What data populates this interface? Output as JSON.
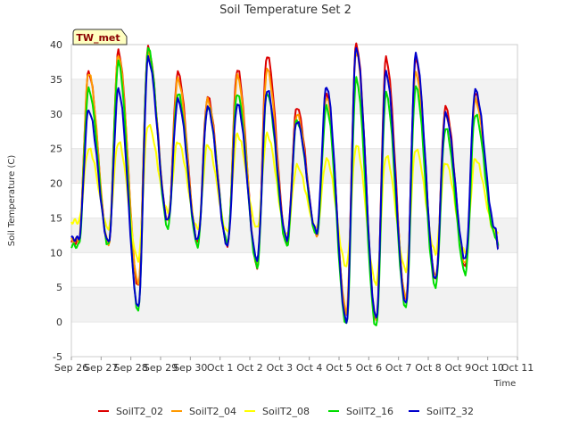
{
  "chart_data": {
    "type": "line",
    "title": "Soil Temperature Set 2",
    "xlabel": "Time",
    "ylabel": "Soil Temperature (C)",
    "ylim": [
      -5,
      40
    ],
    "yticks": [
      -5,
      0,
      5,
      10,
      15,
      20,
      25,
      30,
      35,
      40
    ],
    "xticks": [
      "Sep 26",
      "Sep 27",
      "Sep 28",
      "Sep 29",
      "Sep 30",
      "Oct 1",
      "Oct 2",
      "Oct 3",
      "Oct 4",
      "Oct 5",
      "Oct 6",
      "Oct 7",
      "Oct 8",
      "Oct 9",
      "Oct 10",
      "Oct 11"
    ],
    "xlim": [
      "Sep 26",
      "Oct 11"
    ],
    "grid": "horizontal bands",
    "legend_position": "bottom",
    "annotation": "TW_met",
    "series": [
      {
        "name": "SoilT2_02",
        "color": "#dd0000",
        "peaks": [
          36,
          39,
          39.5,
          36,
          32.5,
          36.5,
          38.5,
          31,
          33,
          40,
          38,
          38,
          31,
          33
        ],
        "troughs": [
          11.5,
          11,
          5,
          14.5,
          11.5,
          11,
          8,
          11.5,
          12.5,
          1,
          0,
          3,
          6,
          8,
          13
        ],
        "end_value": 11
      },
      {
        "name": "SoilT2_04",
        "color": "#ff9900",
        "peaks": [
          36,
          38.5,
          39,
          35,
          32,
          35.5,
          36.5,
          30,
          32.5,
          39,
          36,
          36,
          30,
          32
        ],
        "troughs": [
          11.8,
          11.3,
          5.5,
          14.5,
          11.7,
          11.2,
          8.3,
          11.7,
          12.6,
          1.5,
          0.5,
          3.5,
          6.5,
          8.3,
          13
        ],
        "end_value": 11
      },
      {
        "name": "SoilT2_08",
        "color": "#ffff00",
        "peaks": [
          25,
          26,
          28.5,
          26,
          25.5,
          27,
          27,
          22.5,
          23.5,
          25.5,
          24,
          25,
          23,
          23.5
        ],
        "troughs": [
          14.5,
          13.5,
          9,
          16,
          13.5,
          13,
          13.5,
          12.5,
          13.5,
          8,
          5.5,
          7.5,
          10,
          10,
          13
        ],
        "end_value": 13
      },
      {
        "name": "SoilT2_16",
        "color": "#00dd00",
        "peaks": [
          33.5,
          37.5,
          39.5,
          33,
          31,
          33,
          33,
          29,
          31,
          35,
          33,
          34,
          28,
          30
        ],
        "troughs": [
          11,
          11,
          1.5,
          13.5,
          11,
          11.5,
          8,
          11,
          12.5,
          -0.5,
          -0.8,
          2,
          5,
          7,
          12.5
        ],
        "end_value": 11
      },
      {
        "name": "SoilT2_32",
        "color": "#0000cc",
        "peaks": [
          30.5,
          33.5,
          38,
          32,
          31,
          31.5,
          33.5,
          29,
          34,
          39.5,
          36,
          38.5,
          30,
          33.5
        ],
        "troughs": [
          12,
          11.5,
          2,
          14.5,
          11.8,
          11,
          9,
          12,
          13,
          0,
          0.5,
          2.5,
          6,
          9,
          13.5
        ],
        "end_value": 10.5
      }
    ]
  }
}
